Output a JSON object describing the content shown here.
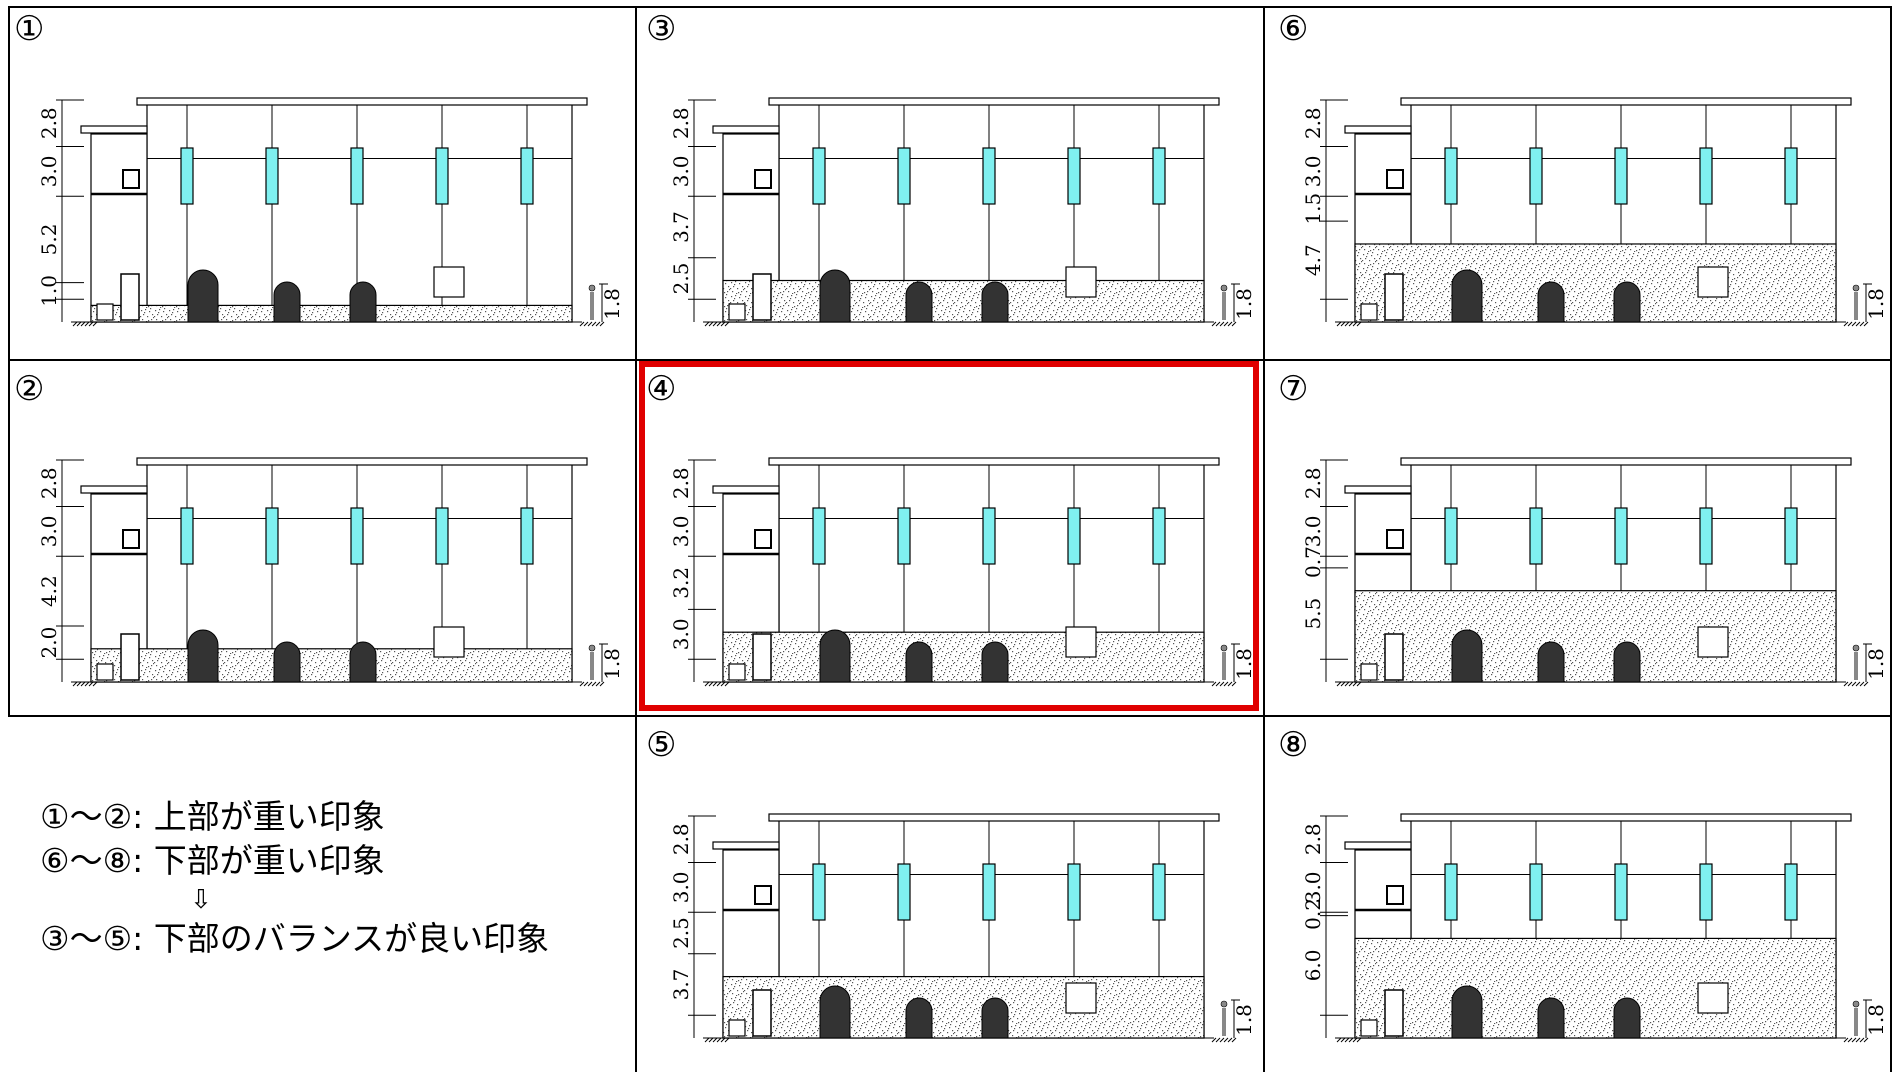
{
  "panels": [
    {
      "number": "①",
      "dims": [
        "2.8",
        "3.0",
        "5.2",
        "1.0"
      ],
      "fill_height_m": 1.0,
      "person": "1.8"
    },
    {
      "number": "②",
      "dims": [
        "2.8",
        "3.0",
        "4.2",
        "2.0"
      ],
      "fill_height_m": 2.0,
      "person": "1.8"
    },
    {
      "number": "③",
      "dims": [
        "2.8",
        "3.0",
        "3.7",
        "2.5"
      ],
      "fill_height_m": 2.5,
      "person": "1.8"
    },
    {
      "number": "④",
      "dims": [
        "2.8",
        "3.0",
        "3.2",
        "3.0"
      ],
      "fill_height_m": 3.0,
      "person": "1.8",
      "highlighted": true
    },
    {
      "number": "⑤",
      "dims": [
        "2.8",
        "3.0",
        "2.5",
        "3.7"
      ],
      "fill_height_m": 3.7,
      "person": "1.8"
    },
    {
      "number": "⑥",
      "dims": [
        "2.8",
        "3.0",
        "1.5",
        "4.7"
      ],
      "fill_height_m": 4.7,
      "person": "1.8"
    },
    {
      "number": "⑦",
      "dims": [
        "2.8",
        "3.0",
        "0.7",
        "5.5"
      ],
      "fill_height_m": 5.5,
      "person": "1.8"
    },
    {
      "number": "⑧",
      "dims": [
        "2.8",
        "3.0",
        "0.2",
        "6.0"
      ],
      "fill_height_m": 6.0,
      "person": "1.8"
    }
  ],
  "notes": {
    "line1": "①～②: 上部が重い印象",
    "line2": "⑥～⑧: 下部が重い印象",
    "arrow": "⇩",
    "line3": "③～⑤: 下部のバランスが良い印象"
  },
  "colors": {
    "window": "#7ff0f0",
    "arch": "#333333",
    "highlight": "#e00000",
    "stone_fill": "#d9d9d9"
  }
}
